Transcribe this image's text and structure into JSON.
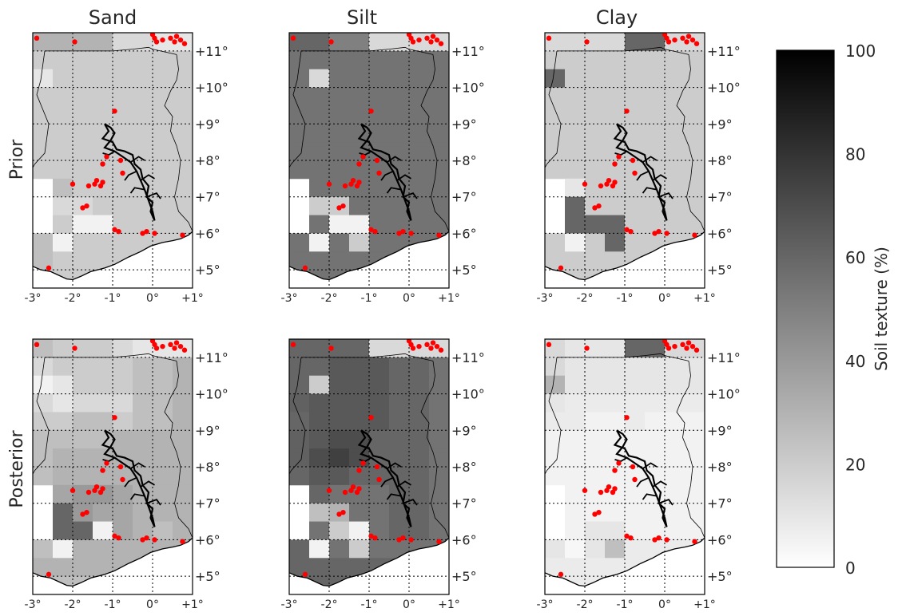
{
  "chart_data": {
    "type": "heatmap",
    "column_titles": [
      "Sand",
      "Silt",
      "Clay"
    ],
    "row_labels": [
      "Prior",
      "Posterior"
    ],
    "x_range": [
      -3,
      1
    ],
    "y_range": [
      4.5,
      11.5
    ],
    "x_ticks": [
      -3,
      -2,
      -1,
      0,
      1
    ],
    "x_tick_labels": [
      "-3°",
      "-2°",
      "-1°",
      "0°",
      "+1°"
    ],
    "y_ticks": [
      5,
      6,
      7,
      8,
      9,
      10,
      11
    ],
    "y_tick_labels": [
      "+5°",
      "+6°",
      "+7°",
      "+8°",
      "+9°",
      "+10°",
      "+11°"
    ],
    "grid": true,
    "cell_size_deg": 0.5,
    "grid_lon_start": -3,
    "grid_lat_start": 11.5,
    "colorbar": {
      "label": "Soil texture (%)",
      "range": [
        0,
        100
      ],
      "ticks": [
        0,
        20,
        40,
        60,
        80,
        100
      ],
      "tick_labels": [
        "0",
        "20",
        "40",
        "60",
        "80",
        "100"
      ],
      "colormap": "white-to-black"
    },
    "panels": [
      {
        "column": "Sand",
        "row": "Prior",
        "rows_north_to_south": [
          [
            30,
            30,
            30,
            30,
            15,
            15,
            10,
            10
          ],
          [
            20,
            20,
            20,
            20,
            20,
            20,
            20,
            20
          ],
          [
            10,
            20,
            20,
            20,
            20,
            20,
            20,
            20
          ],
          [
            20,
            20,
            20,
            20,
            20,
            20,
            20,
            20
          ],
          [
            20,
            20,
            20,
            20,
            20,
            20,
            20,
            20
          ],
          [
            20,
            20,
            20,
            20,
            20,
            20,
            20,
            20
          ],
          [
            20,
            20,
            20,
            20,
            20,
            20,
            20,
            20
          ],
          [
            20,
            20,
            20,
            20,
            20,
            20,
            20,
            20
          ],
          [
            -1,
            25,
            20,
            20,
            20,
            20,
            20,
            20
          ],
          [
            -1,
            15,
            15,
            20,
            20,
            20,
            20,
            20
          ],
          [
            -1,
            20,
            5,
            5,
            20,
            20,
            20,
            20
          ],
          [
            25,
            5,
            20,
            20,
            20,
            20,
            20,
            20
          ],
          [
            25,
            20,
            20,
            20,
            20,
            20,
            20,
            20
          ],
          [
            20,
            20,
            20,
            20,
            20,
            20,
            20,
            20
          ]
        ]
      },
      {
        "column": "Silt",
        "row": "Prior",
        "rows_north_to_south": [
          [
            60,
            60,
            50,
            50,
            15,
            15,
            15,
            15
          ],
          [
            55,
            55,
            55,
            55,
            55,
            55,
            55,
            55
          ],
          [
            55,
            15,
            55,
            55,
            55,
            55,
            55,
            55
          ],
          [
            55,
            55,
            55,
            55,
            55,
            55,
            55,
            55
          ],
          [
            55,
            55,
            55,
            55,
            55,
            55,
            55,
            55
          ],
          [
            55,
            55,
            55,
            55,
            55,
            55,
            55,
            55
          ],
          [
            55,
            55,
            55,
            55,
            55,
            55,
            55,
            55
          ],
          [
            55,
            55,
            55,
            55,
            55,
            55,
            55,
            55
          ],
          [
            -1,
            55,
            55,
            55,
            55,
            55,
            55,
            55
          ],
          [
            -1,
            20,
            20,
            55,
            55,
            55,
            55,
            55
          ],
          [
            -1,
            55,
            5,
            5,
            55,
            55,
            55,
            55
          ],
          [
            55,
            5,
            55,
            20,
            55,
            55,
            55,
            55
          ],
          [
            55,
            55,
            55,
            55,
            55,
            55,
            55,
            55
          ],
          [
            55,
            55,
            55,
            55,
            55,
            55,
            55,
            55
          ]
        ]
      },
      {
        "column": "Clay",
        "row": "Prior",
        "rows_north_to_south": [
          [
            15,
            15,
            15,
            15,
            60,
            60,
            15,
            15
          ],
          [
            20,
            20,
            20,
            20,
            20,
            20,
            20,
            20
          ],
          [
            60,
            20,
            20,
            20,
            20,
            20,
            20,
            20
          ],
          [
            20,
            20,
            20,
            20,
            20,
            20,
            20,
            20
          ],
          [
            20,
            20,
            20,
            20,
            20,
            20,
            20,
            20
          ],
          [
            20,
            20,
            20,
            20,
            20,
            20,
            20,
            20
          ],
          [
            20,
            20,
            20,
            20,
            20,
            20,
            20,
            20
          ],
          [
            20,
            20,
            20,
            20,
            20,
            20,
            20,
            20
          ],
          [
            -1,
            10,
            20,
            20,
            20,
            20,
            20,
            20
          ],
          [
            -1,
            60,
            20,
            20,
            20,
            20,
            20,
            20
          ],
          [
            -1,
            60,
            60,
            60,
            20,
            20,
            20,
            20
          ],
          [
            20,
            5,
            20,
            60,
            20,
            20,
            20,
            20
          ],
          [
            20,
            20,
            20,
            20,
            20,
            20,
            20,
            20
          ],
          [
            20,
            20,
            20,
            20,
            20,
            20,
            20,
            20
          ]
        ]
      },
      {
        "column": "Sand",
        "row": "Posterior",
        "rows_north_to_south": [
          [
            25,
            20,
            20,
            20,
            15,
            10,
            10,
            10
          ],
          [
            15,
            20,
            20,
            20,
            20,
            25,
            25,
            30
          ],
          [
            5,
            10,
            20,
            20,
            20,
            25,
            25,
            30
          ],
          [
            15,
            10,
            15,
            15,
            15,
            25,
            25,
            30
          ],
          [
            20,
            20,
            25,
            25,
            20,
            25,
            25,
            30
          ],
          [
            25,
            25,
            25,
            25,
            30,
            30,
            30,
            30
          ],
          [
            25,
            30,
            30,
            30,
            30,
            30,
            30,
            30
          ],
          [
            25,
            30,
            30,
            30,
            30,
            30,
            30,
            30
          ],
          [
            -1,
            35,
            40,
            40,
            35,
            30,
            30,
            30
          ],
          [
            -1,
            60,
            40,
            35,
            35,
            30,
            30,
            30
          ],
          [
            -1,
            60,
            60,
            5,
            35,
            30,
            25,
            30
          ],
          [
            25,
            5,
            30,
            30,
            30,
            30,
            30,
            30
          ],
          [
            30,
            30,
            30,
            30,
            30,
            30,
            30,
            30
          ],
          [
            25,
            25,
            25,
            25,
            25,
            25,
            25,
            25
          ]
        ]
      },
      {
        "column": "Silt",
        "row": "Posterior",
        "rows_north_to_south": [
          [
            60,
            60,
            60,
            60,
            15,
            15,
            15,
            15
          ],
          [
            60,
            60,
            65,
            65,
            65,
            60,
            60,
            55
          ],
          [
            60,
            20,
            65,
            65,
            65,
            60,
            60,
            55
          ],
          [
            62,
            65,
            65,
            65,
            65,
            60,
            60,
            55
          ],
          [
            60,
            65,
            65,
            65,
            65,
            60,
            60,
            55
          ],
          [
            62,
            65,
            70,
            70,
            60,
            60,
            60,
            55
          ],
          [
            62,
            70,
            75,
            70,
            60,
            60,
            60,
            55
          ],
          [
            60,
            65,
            65,
            60,
            60,
            60,
            60,
            55
          ],
          [
            -1,
            60,
            55,
            55,
            55,
            60,
            60,
            55
          ],
          [
            -1,
            25,
            30,
            55,
            55,
            60,
            60,
            55
          ],
          [
            -1,
            55,
            20,
            5,
            55,
            60,
            60,
            55
          ],
          [
            60,
            5,
            55,
            20,
            55,
            55,
            55,
            55
          ],
          [
            60,
            60,
            60,
            60,
            60,
            60,
            60,
            60
          ],
          [
            60,
            60,
            60,
            60,
            60,
            60,
            60,
            60
          ]
        ]
      },
      {
        "column": "Clay",
        "row": "Posterior",
        "rows_north_to_south": [
          [
            15,
            10,
            10,
            10,
            60,
            60,
            15,
            15
          ],
          [
            15,
            10,
            10,
            10,
            10,
            10,
            10,
            10
          ],
          [
            30,
            10,
            10,
            10,
            10,
            10,
            10,
            10
          ],
          [
            10,
            8,
            8,
            8,
            8,
            8,
            8,
            8
          ],
          [
            8,
            8,
            5,
            5,
            8,
            5,
            5,
            5
          ],
          [
            5,
            5,
            5,
            5,
            5,
            5,
            5,
            5
          ],
          [
            5,
            5,
            5,
            5,
            5,
            5,
            5,
            5
          ],
          [
            5,
            5,
            5,
            5,
            5,
            5,
            5,
            5
          ],
          [
            -1,
            5,
            5,
            5,
            5,
            5,
            5,
            5
          ],
          [
            -1,
            5,
            5,
            5,
            5,
            5,
            5,
            5
          ],
          [
            -1,
            5,
            10,
            10,
            5,
            5,
            5,
            5
          ],
          [
            10,
            3,
            10,
            25,
            8,
            8,
            8,
            8
          ],
          [
            8,
            8,
            8,
            8,
            8,
            8,
            8,
            8
          ],
          [
            8,
            8,
            8,
            8,
            8,
            8,
            8,
            8
          ]
        ]
      }
    ],
    "stations": {
      "marker_color": "#ff0000",
      "points": [
        [
          -2.9,
          11.35
        ],
        [
          -1.95,
          11.25
        ],
        [
          0.0,
          11.45
        ],
        [
          0.05,
          11.35
        ],
        [
          0.1,
          11.25
        ],
        [
          0.25,
          11.3
        ],
        [
          0.45,
          11.35
        ],
        [
          0.55,
          11.25
        ],
        [
          0.6,
          11.4
        ],
        [
          0.7,
          11.3
        ],
        [
          0.8,
          11.2
        ],
        [
          -0.95,
          9.35
        ],
        [
          -1.25,
          7.9
        ],
        [
          -1.15,
          8.1
        ],
        [
          -0.8,
          8.0
        ],
        [
          -0.75,
          7.65
        ],
        [
          -2.0,
          7.35
        ],
        [
          -1.6,
          7.3
        ],
        [
          -1.45,
          7.35
        ],
        [
          -1.4,
          7.45
        ],
        [
          -1.3,
          7.3
        ],
        [
          -1.25,
          7.4
        ],
        [
          -1.75,
          6.7
        ],
        [
          -1.65,
          6.75
        ],
        [
          -0.95,
          6.1
        ],
        [
          -0.85,
          6.05
        ],
        [
          -0.25,
          6.0
        ],
        [
          -0.15,
          6.05
        ],
        [
          0.05,
          6.0
        ],
        [
          0.75,
          5.95
        ],
        [
          -2.6,
          5.05
        ]
      ]
    }
  }
}
